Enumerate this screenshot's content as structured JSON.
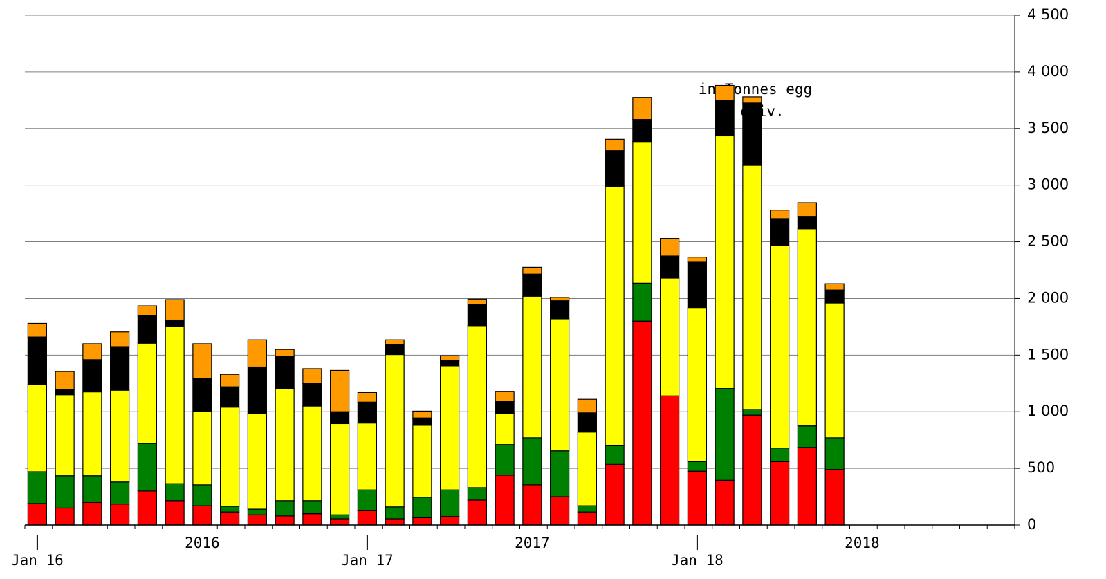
{
  "chart_data": {
    "type": "stacked_bar",
    "annotation": [
      "in Tonnes egg",
      "eqiv."
    ],
    "categories": [
      "Jan 16",
      null,
      null,
      null,
      null,
      null,
      "2016",
      null,
      null,
      null,
      null,
      null,
      "Jan 17",
      null,
      null,
      null,
      null,
      null,
      "2017",
      null,
      null,
      null,
      null,
      null,
      "Jan 18",
      null,
      null,
      null,
      null,
      null,
      "2018",
      null,
      null,
      null,
      null,
      null
    ],
    "series": [
      {
        "color": "#ff0000",
        "values": [
          190,
          150,
          200,
          185,
          300,
          215,
          170,
          115,
          90,
          80,
          100,
          55,
          130,
          55,
          65,
          75,
          220,
          440,
          355,
          250,
          115,
          535,
          1800,
          1140,
          475,
          395,
          970,
          560,
          685,
          490,
          null,
          null,
          null,
          null,
          null,
          null
        ]
      },
      {
        "color": "#008000",
        "values": [
          280,
          285,
          235,
          195,
          420,
          150,
          185,
          50,
          50,
          135,
          115,
          35,
          180,
          105,
          180,
          235,
          110,
          270,
          415,
          405,
          55,
          165,
          335,
          0,
          85,
          810,
          50,
          120,
          190,
          280,
          null,
          null,
          null,
          null,
          null,
          null
        ]
      },
      {
        "color": "#ffff00",
        "values": [
          770,
          715,
          740,
          810,
          885,
          1385,
          645,
          875,
          845,
          990,
          835,
          805,
          590,
          1345,
          635,
          1095,
          1430,
          275,
          1250,
          1165,
          650,
          2290,
          1250,
          1040,
          1360,
          2230,
          2155,
          1785,
          1740,
          1190,
          null,
          null,
          null,
          null,
          null,
          null
        ]
      },
      {
        "color": "#000000",
        "values": [
          420,
          45,
          285,
          385,
          245,
          60,
          295,
          180,
          410,
          285,
          200,
          105,
          185,
          90,
          65,
          45,
          190,
          105,
          195,
          160,
          170,
          315,
          195,
          195,
          400,
          315,
          550,
          240,
          110,
          115,
          null,
          null,
          null,
          null,
          null,
          null
        ]
      },
      {
        "color": "#ff9900",
        "values": [
          120,
          160,
          140,
          130,
          85,
          180,
          305,
          110,
          240,
          60,
          130,
          365,
          85,
          40,
          60,
          45,
          45,
          90,
          60,
          30,
          120,
          100,
          195,
          155,
          45,
          130,
          55,
          75,
          120,
          55,
          null,
          null,
          null,
          null,
          null,
          null
        ]
      }
    ],
    "ylim": [
      0,
      4500
    ],
    "yticks": [
      0,
      500,
      {
        "value": 1000,
        "label": "1 000"
      },
      {
        "value": 1500,
        "label": "1 500"
      },
      {
        "value": 2000,
        "label": "2 000"
      },
      {
        "value": 2500,
        "label": "2 500"
      },
      {
        "value": 3000,
        "label": "3 000"
      },
      {
        "value": 3500,
        "label": "3 500"
      },
      {
        "value": 4000,
        "label": "4 000"
      },
      {
        "value": 4500,
        "label": "4 500"
      }
    ],
    "grid": true
  }
}
